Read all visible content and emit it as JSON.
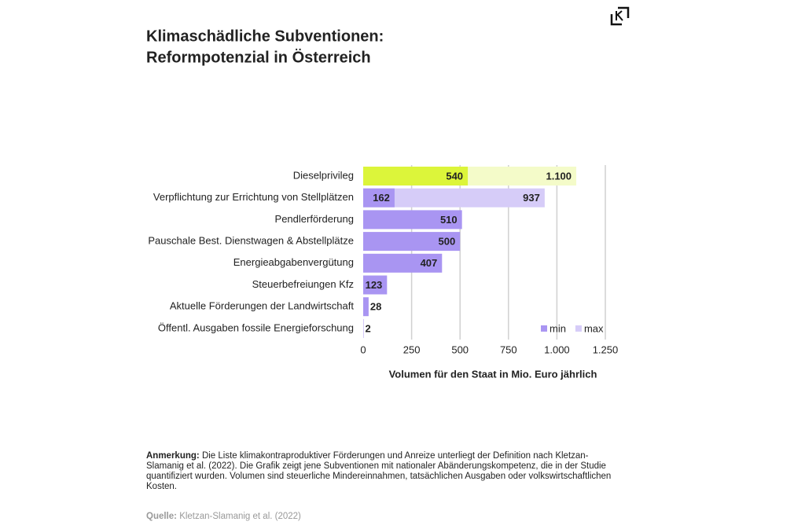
{
  "chart_data": {
    "type": "bar",
    "orientation": "horizontal",
    "overlap": true,
    "title": [
      "Klimaschädliche Subventionen:",
      "Reformpotenzial in Österreich"
    ],
    "categories": [
      "Dieselprivileg",
      "Verpflichtung zur Errichtung von Stellplätzen",
      "Pendlerförderung",
      "Pauschale Best. Dienstwagen & Abstellplätze",
      "Energieabgabenvergütung",
      "Steuerbefreiungen Kfz",
      "Aktuelle Förderungen der Landwirtschaft",
      "Öffentl. Ausgaben fossile Energieforschung"
    ],
    "series": [
      {
        "name": "max",
        "color": "#d6ccf8",
        "colors": [
          "#f4fbc9",
          "#d6ccf8",
          "#d6ccf8",
          "#d6ccf8",
          "#d6ccf8",
          "#d6ccf8",
          "#d6ccf8",
          "#d6ccf8"
        ],
        "values": [
          1100,
          937,
          null,
          null,
          null,
          null,
          null,
          null
        ],
        "value_labels": [
          "1.100",
          "937",
          null,
          null,
          null,
          null,
          null,
          null
        ]
      },
      {
        "name": "min",
        "color": "#a995f2",
        "colors": [
          "#dcf53a",
          "#a995f2",
          "#a995f2",
          "#a995f2",
          "#a995f2",
          "#a995f2",
          "#a995f2",
          "#a995f2"
        ],
        "values": [
          540,
          162,
          510,
          500,
          407,
          123,
          28,
          2
        ]
      }
    ],
    "xlabel": "Volumen für den Staat in Mio. Euro jährlich",
    "xlim": [
      0,
      1250
    ],
    "xticks": [
      0,
      250,
      500,
      750,
      {
        "value": 1000,
        "label": "1.000"
      },
      {
        "value": 1250,
        "label": "1.250"
      }
    ],
    "grid": true,
    "legend": "bottom-right"
  },
  "notes": {
    "label": "Anmerkung:",
    "text": "Die Liste klimakontraproduktiver Förderungen und Anreize unterliegt der Definition nach Kletzan-Slamanig et al. (2022). Die Grafik zeigt jene Subventionen mit nationaler Abänderungskompetenz, die in der Studie quantifiziert wurden. Volumen sind steuerliche Mindereinnahmen, tatsächlichen Ausgaben oder volkswirtschaftlichen Kosten.",
    "source_label": "Quelle:",
    "source": "Kletzan-Slamanig et al. (2022)"
  }
}
